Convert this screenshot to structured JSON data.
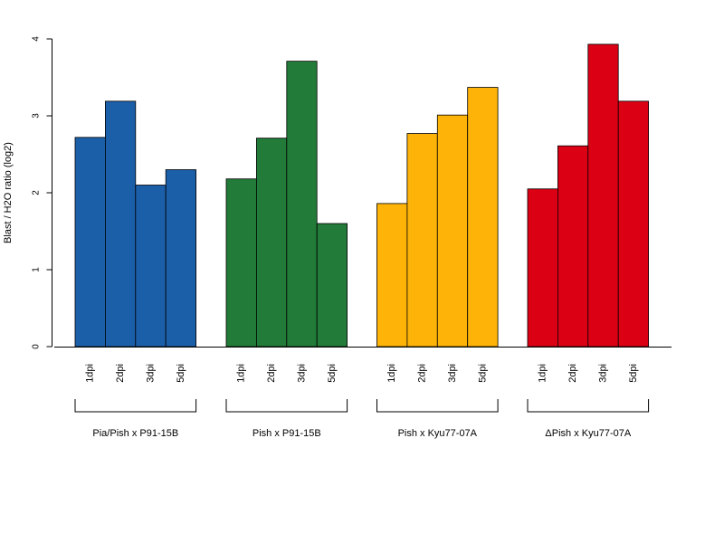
{
  "chart_data": {
    "type": "bar",
    "ylabel": "Blast / H2O ratio (log2)",
    "ylim": [
      0,
      4
    ],
    "yticks": [
      0,
      1,
      2,
      3,
      4
    ],
    "grid": false,
    "categories": [
      "1dpi",
      "2dpi",
      "3dpi",
      "5dpi"
    ],
    "groups": [
      {
        "name": "Pia/Pish x P91-15B",
        "color": "#1c5fa9",
        "values": [
          2.72,
          3.19,
          2.1,
          2.3
        ]
      },
      {
        "name": "Pish x P91-15B",
        "color": "#227b38",
        "values": [
          2.18,
          2.71,
          3.71,
          1.6
        ]
      },
      {
        "name": "Pish x Kyu77-07A",
        "color": "#fdb307",
        "values": [
          1.86,
          2.77,
          3.01,
          3.37
        ]
      },
      {
        "name": "ΔPish x Kyu77-07A",
        "color": "#dc0014",
        "values": [
          2.05,
          2.61,
          3.93,
          3.19
        ]
      }
    ]
  }
}
